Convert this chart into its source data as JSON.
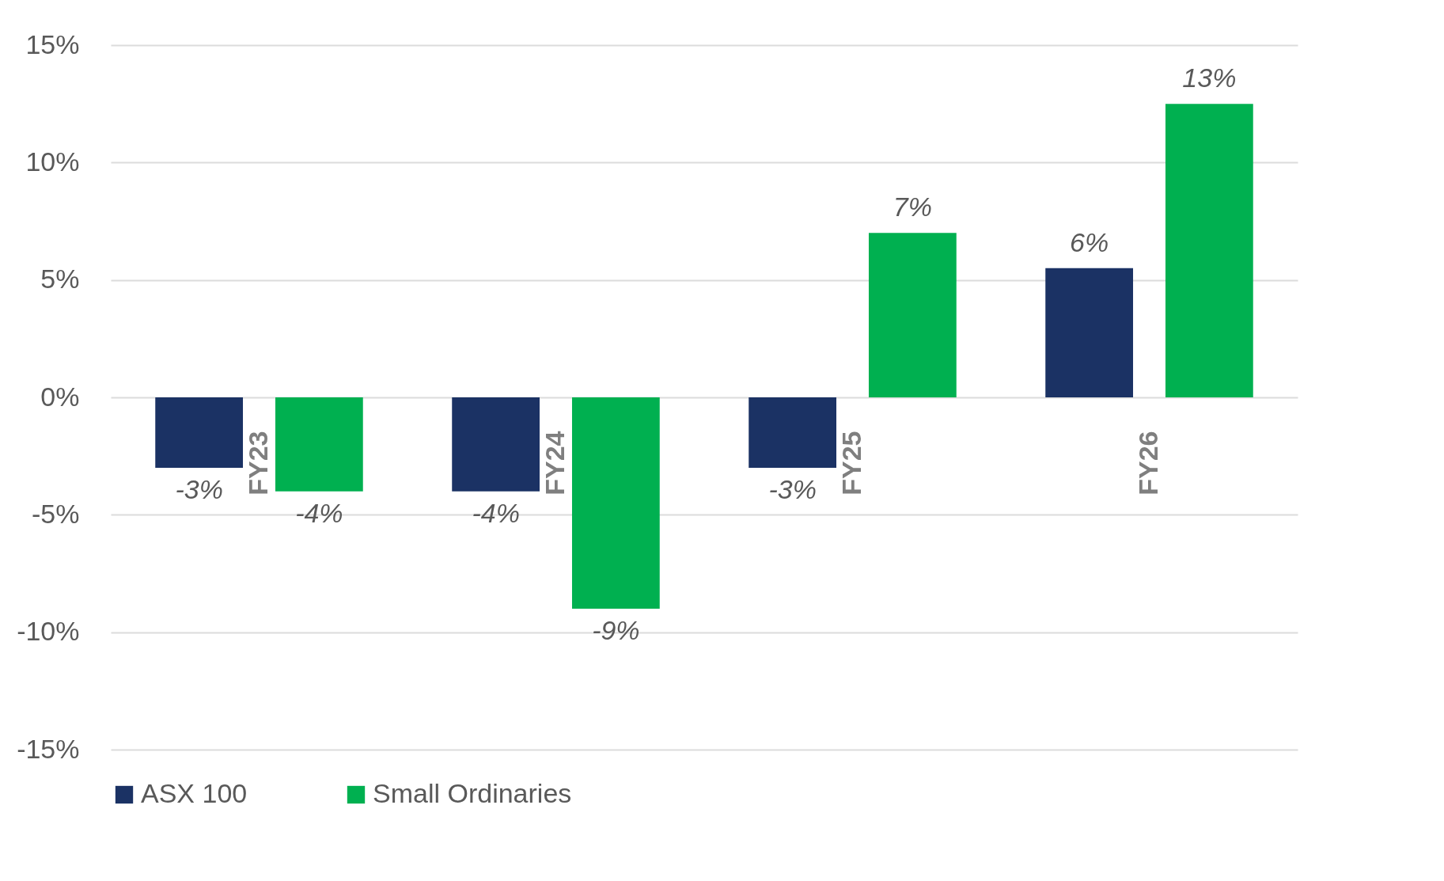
{
  "chart_data": {
    "type": "bar",
    "categories": [
      "FY23",
      "FY24",
      "FY25",
      "FY26"
    ],
    "series": [
      {
        "name": "ASX 100",
        "color": "#1b3264",
        "values": [
          -3,
          -4,
          -3,
          5.5
        ],
        "value_labels": [
          "-3%",
          "-4%",
          "-3%",
          "6%"
        ]
      },
      {
        "name": "Small Ordinaries",
        "color": "#00b050",
        "values": [
          -4,
          -9,
          7,
          12.5
        ],
        "value_labels": [
          "-4%",
          "-9%",
          "7%",
          "13%"
        ]
      }
    ],
    "ylim": [
      -15,
      15
    ],
    "yticks": [
      {
        "value": -15,
        "label": "-15%"
      },
      {
        "value": -10,
        "label": "-10%"
      },
      {
        "value": -5,
        "label": "-5%"
      },
      {
        "value": 0,
        "label": "0%"
      },
      {
        "value": 5,
        "label": "5%"
      },
      {
        "value": 10,
        "label": "10%"
      },
      {
        "value": 15,
        "label": "15%"
      }
    ],
    "grid": "y",
    "legend": "bottom"
  }
}
